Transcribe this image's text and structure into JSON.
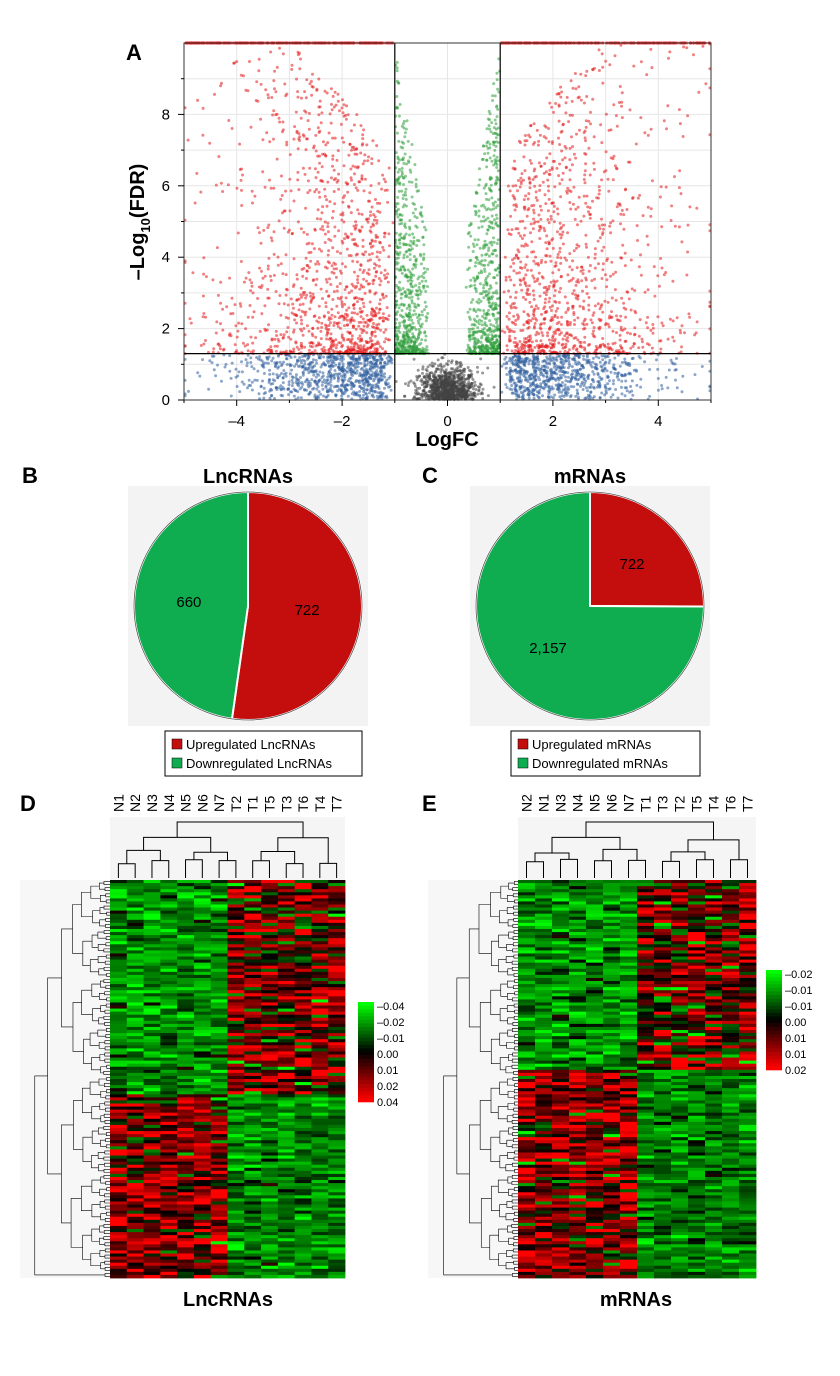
{
  "panels": {
    "A": "A",
    "B": "B",
    "C": "C",
    "D": "D",
    "E": "E"
  },
  "colors": {
    "up": "#c40d0d",
    "down": "#0fad50",
    "volcano_red": "#e41a1c",
    "volcano_green": "#2e9e3a",
    "volcano_blue": "#2f5f9e",
    "volcano_gray": "#444444",
    "heat_low": "#00ff00",
    "heat_mid": "#000000",
    "heat_high": "#ff0000"
  },
  "chart_data": [
    {
      "id": "volcano",
      "type": "scatter",
      "xlabel": "LogFC",
      "ylabel_main": "–Log",
      "ylabel_sub": "10",
      "ylabel_tail": "(FDR)",
      "xlim": [
        -5,
        5
      ],
      "ylim": [
        0,
        10
      ],
      "xticks": [
        -4,
        -2,
        0,
        2,
        4
      ],
      "xtick_labels": [
        "–4",
        "–2",
        "0",
        "2",
        "4"
      ],
      "yticks": [
        0,
        2,
        4,
        6,
        8
      ],
      "ytick_labels": [
        "0",
        "2",
        "4",
        "6",
        "8"
      ],
      "logfc_thresholds": [
        -1,
        1
      ],
      "fdr_threshold": 1.3,
      "y_cap": 10,
      "grid": true,
      "groups": [
        "significant-up-or-down",
        "fdr-only",
        "logfc-only",
        "not-significant"
      ]
    },
    {
      "id": "pie-lnc",
      "type": "pie",
      "title": "LncRNAs",
      "slices": [
        {
          "label": "Upregulated LncRNAs",
          "value": 722,
          "value_label": "722",
          "color": "#c40d0d"
        },
        {
          "label": "Downregulated LncRNAs",
          "value": 660,
          "value_label": "660",
          "color": "#0fad50"
        }
      ],
      "legend": "bottom"
    },
    {
      "id": "pie-mrna",
      "type": "pie",
      "title": "mRNAs",
      "slices": [
        {
          "label": "Upregulated mRNAs",
          "value": 722,
          "value_label": "722",
          "color": "#c40d0d"
        },
        {
          "label": "Downregulated mRNAs",
          "value": 2157,
          "value_label": "2,157",
          "color": "#0fad50"
        }
      ],
      "legend": "bottom"
    },
    {
      "id": "heat-lnc",
      "type": "heatmap",
      "title": "LncRNAs",
      "columns": [
        "N1",
        "N2",
        "N3",
        "N4",
        "N5",
        "N6",
        "N7",
        "T2",
        "T1",
        "T5",
        "T3",
        "T6",
        "T4",
        "T7"
      ],
      "scale_labels": [
        "–0.04",
        "–0.02",
        "–0.01",
        "0.00",
        "0.01",
        "0.02",
        "0.04"
      ],
      "upper_block_fraction": 0.54,
      "legend": "right"
    },
    {
      "id": "heat-mrna",
      "type": "heatmap",
      "title": "mRNAs",
      "columns": [
        "N2",
        "N1",
        "N3",
        "N4",
        "N5",
        "N6",
        "N7",
        "T1",
        "T3",
        "T2",
        "T5",
        "T4",
        "T6",
        "T7"
      ],
      "scale_labels": [
        "–0.02",
        "–0.01",
        "–0.01",
        "0.00",
        "0.01",
        "0.01",
        "0.02"
      ],
      "upper_block_fraction": 0.48,
      "legend": "right"
    }
  ]
}
